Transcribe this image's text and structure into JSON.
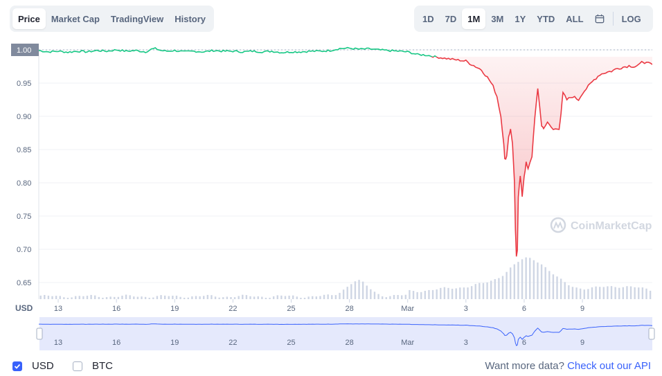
{
  "tabs_left": [
    {
      "label": "Price",
      "active": true
    },
    {
      "label": "Market Cap",
      "active": false
    },
    {
      "label": "TradingView",
      "active": false
    },
    {
      "label": "History",
      "active": false
    }
  ],
  "ranges": [
    {
      "label": "1D",
      "active": false
    },
    {
      "label": "7D",
      "active": false
    },
    {
      "label": "1M",
      "active": true
    },
    {
      "label": "3M",
      "active": false
    },
    {
      "label": "1Y",
      "active": false
    },
    {
      "label": "YTD",
      "active": false
    },
    {
      "label": "ALL",
      "active": false
    }
  ],
  "calendar_icon": "calendar-icon",
  "log_label": "LOG",
  "currency_label": "USD",
  "watermark": "CoinMarketCap",
  "legend": [
    {
      "label": "USD",
      "checked": true
    },
    {
      "label": "BTC",
      "checked": false
    }
  ],
  "api_text": "Want more data?",
  "api_link": "Check out our API",
  "colors": {
    "up": "#16c784",
    "down": "#ea3943",
    "navigator": "#3861fb",
    "volume": "#cfd6e4"
  },
  "chart_data": {
    "type": "line",
    "baseline": 1.0,
    "y_ticks": [
      0.65,
      0.7,
      0.75,
      0.8,
      0.85,
      0.9,
      0.95,
      1.0
    ],
    "y_labels": [
      "0.65",
      "0.70",
      "0.75",
      "0.80",
      "0.85",
      "0.90",
      "0.95",
      "1.00"
    ],
    "ylim": [
      0.625,
      1.0125
    ],
    "xlim": [
      0,
      31.6
    ],
    "x_ticks": [
      1,
      4,
      7,
      10,
      13,
      16,
      19,
      22,
      25,
      28
    ],
    "x_labels": [
      "13",
      "16",
      "19",
      "22",
      "25",
      "28",
      "Mar",
      "3",
      "6",
      "9"
    ],
    "grid": true,
    "price": [
      [
        0,
        0.999
      ],
      [
        0.5,
        0.997
      ],
      [
        1,
        0.998
      ],
      [
        1.5,
        0.9965
      ],
      [
        2,
        0.998
      ],
      [
        2.5,
        0.997
      ],
      [
        3,
        0.999
      ],
      [
        3.5,
        0.998
      ],
      [
        4,
        1.0
      ],
      [
        4.5,
        0.998
      ],
      [
        5,
        0.999
      ],
      [
        5.5,
        0.997
      ],
      [
        5.8,
        1.001
      ],
      [
        6,
        1.002
      ],
      [
        6.3,
        0.999
      ],
      [
        6.6,
        0.998
      ],
      [
        7,
        0.999
      ],
      [
        7.5,
        0.997
      ],
      [
        8,
        0.998
      ],
      [
        8.5,
        0.997
      ],
      [
        9,
        0.999
      ],
      [
        9.5,
        0.998
      ],
      [
        10,
        0.998
      ],
      [
        10.5,
        0.997
      ],
      [
        11,
        0.998
      ],
      [
        11.5,
        0.997
      ],
      [
        12,
        0.998
      ],
      [
        12.5,
        0.996
      ],
      [
        13,
        0.997
      ],
      [
        13.5,
        0.997
      ],
      [
        14,
        0.998
      ],
      [
        14.5,
        0.998
      ],
      [
        15,
        0.999
      ],
      [
        15.5,
        1.002
      ],
      [
        16,
        1.0025
      ],
      [
        16.5,
        1.001
      ],
      [
        17,
        1.0015
      ],
      [
        17.5,
        1.0
      ],
      [
        18,
        0.999
      ],
      [
        18.5,
        0.998
      ],
      [
        19,
        0.997
      ],
      [
        19.5,
        0.993
      ],
      [
        20,
        0.992
      ],
      [
        20.5,
        0.989
      ],
      [
        21,
        0.987
      ],
      [
        21.5,
        0.985
      ],
      [
        22,
        0.983
      ],
      [
        22.3,
        0.978
      ],
      [
        22.8,
        0.97
      ],
      [
        23.2,
        0.955
      ],
      [
        23.4,
        0.945
      ],
      [
        23.6,
        0.93
      ],
      [
        23.8,
        0.9
      ],
      [
        23.95,
        0.86
      ],
      [
        24.0,
        0.835
      ],
      [
        24.1,
        0.84
      ],
      [
        24.2,
        0.87
      ],
      [
        24.3,
        0.88
      ],
      [
        24.4,
        0.86
      ],
      [
        24.5,
        0.8
      ],
      [
        24.55,
        0.73
      ],
      [
        24.6,
        0.688
      ],
      [
        24.65,
        0.7
      ],
      [
        24.7,
        0.78
      ],
      [
        24.8,
        0.81
      ],
      [
        24.9,
        0.78
      ],
      [
        25.0,
        0.81
      ],
      [
        25.1,
        0.83
      ],
      [
        25.2,
        0.82
      ],
      [
        25.4,
        0.84
      ],
      [
        25.55,
        0.9
      ],
      [
        25.7,
        0.94
      ],
      [
        25.8,
        0.915
      ],
      [
        25.9,
        0.885
      ],
      [
        26.0,
        0.883
      ],
      [
        26.2,
        0.89
      ],
      [
        26.5,
        0.88
      ],
      [
        26.8,
        0.882
      ],
      [
        26.9,
        0.905
      ],
      [
        27.0,
        0.935
      ],
      [
        27.2,
        0.925
      ],
      [
        27.5,
        0.93
      ],
      [
        27.8,
        0.925
      ],
      [
        28,
        0.935
      ],
      [
        28.3,
        0.945
      ],
      [
        28.6,
        0.955
      ],
      [
        28.9,
        0.963
      ],
      [
        29.2,
        0.966
      ],
      [
        29.5,
        0.968
      ],
      [
        29.8,
        0.972
      ],
      [
        30.1,
        0.974
      ],
      [
        30.4,
        0.976
      ],
      [
        30.7,
        0.975
      ],
      [
        31.0,
        0.979
      ],
      [
        31.1,
        0.983
      ],
      [
        31.3,
        0.98
      ],
      [
        31.6,
        0.978
      ]
    ]
  }
}
